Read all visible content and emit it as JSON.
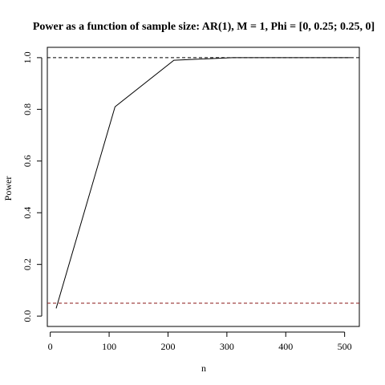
{
  "chart_data": {
    "type": "line",
    "title": "Power as a function of sample size: AR(1), M = 1, Phi = [0, 0.25; 0.25, 0]",
    "xlabel": "n",
    "ylabel": "Power",
    "xlim": [
      -5,
      525
    ],
    "ylim": [
      -0.04,
      1.04
    ],
    "xticks": [
      0,
      100,
      200,
      300,
      400,
      500
    ],
    "yticks": [
      0.0,
      0.2,
      0.4,
      0.6,
      0.8,
      1.0
    ],
    "xtick_labels": [
      "0",
      "100",
      "200",
      "300",
      "400",
      "500"
    ],
    "ytick_labels": [
      "0.0",
      "0.2",
      "0.4",
      "0.6",
      "0.8",
      "1.0"
    ],
    "grid": false,
    "legend": "none",
    "series": [
      {
        "x": [
          10,
          110,
          210,
          310,
          410,
          510
        ],
        "y": [
          0.03,
          0.81,
          0.99,
          1.0,
          1.0,
          1.0
        ],
        "color": "#000000"
      }
    ],
    "reference_lines": [
      {
        "y": 1.0,
        "style": "dashed",
        "color": "#000000"
      },
      {
        "y": 0.05,
        "style": "dashed",
        "color": "#8b1a1a"
      }
    ]
  }
}
